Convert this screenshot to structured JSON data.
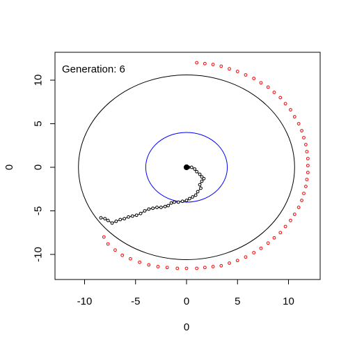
{
  "chart_data": {
    "type": "scatter",
    "title": "",
    "annotation": "Generation: 6",
    "xlabel": "0",
    "ylabel": "0",
    "xlim": [
      -13,
      13
    ],
    "ylim": [
      -13,
      13
    ],
    "x_ticks": [
      -10,
      -5,
      0,
      5,
      10
    ],
    "y_ticks": [
      -10,
      -5,
      0,
      5,
      10
    ],
    "x_tick_labels": [
      "-10",
      "-5",
      "0",
      "5",
      "10"
    ],
    "y_tick_labels": [
      "-10",
      "-5",
      "0",
      "5",
      "10"
    ],
    "grid": false,
    "legend": "none",
    "circles": [
      {
        "center": [
          0,
          0
        ],
        "radius": 10.6,
        "color": "#000000"
      },
      {
        "center": [
          0,
          0
        ],
        "radius": 4.0,
        "color": "#0000ff"
      }
    ],
    "origin_point": {
      "x": 0,
      "y": 0,
      "color": "#000000"
    },
    "series": [
      {
        "role": "outer-arc",
        "color": "#ff0000",
        "marker": "open-circle",
        "points": [
          [
            1.0,
            12.0
          ],
          [
            1.8,
            11.9
          ],
          [
            2.6,
            11.8
          ],
          [
            3.4,
            11.6
          ],
          [
            4.2,
            11.3
          ],
          [
            5.0,
            11.0
          ],
          [
            5.8,
            10.6
          ],
          [
            6.6,
            10.2
          ],
          [
            7.3,
            9.7
          ],
          [
            8.0,
            9.2
          ],
          [
            8.6,
            8.6
          ],
          [
            9.2,
            8.0
          ],
          [
            9.7,
            7.3
          ],
          [
            10.2,
            6.6
          ],
          [
            10.6,
            5.8
          ],
          [
            11.0,
            5.0
          ],
          [
            11.3,
            4.2
          ],
          [
            11.5,
            3.4
          ],
          [
            11.7,
            2.6
          ],
          [
            11.8,
            1.8
          ],
          [
            11.9,
            1.0
          ],
          [
            11.9,
            0.2
          ],
          [
            11.9,
            -0.6
          ],
          [
            11.8,
            -1.4
          ],
          [
            11.7,
            -2.2
          ],
          [
            11.5,
            -3.0
          ],
          [
            11.3,
            -3.8
          ],
          [
            11.0,
            -4.6
          ],
          [
            10.6,
            -5.4
          ],
          [
            10.2,
            -6.1
          ],
          [
            9.7,
            -6.8
          ],
          [
            9.2,
            -7.5
          ],
          [
            8.6,
            -8.1
          ],
          [
            8.0,
            -8.7
          ],
          [
            7.3,
            -9.3
          ],
          [
            6.6,
            -9.8
          ],
          [
            5.8,
            -10.3
          ],
          [
            5.0,
            -10.7
          ],
          [
            4.2,
            -11.0
          ],
          [
            3.4,
            -11.3
          ],
          [
            2.6,
            -11.4
          ],
          [
            1.8,
            -11.5
          ],
          [
            1.0,
            -11.6
          ],
          [
            0.0,
            -11.6
          ],
          [
            -0.9,
            -11.6
          ],
          [
            -1.9,
            -11.5
          ],
          [
            -2.8,
            -11.4
          ],
          [
            -3.7,
            -11.2
          ],
          [
            -4.6,
            -10.9
          ],
          [
            -5.5,
            -10.5
          ],
          [
            -6.3,
            -10.1
          ],
          [
            -7.0,
            -9.5
          ],
          [
            -7.7,
            -8.8
          ],
          [
            -8.1,
            -8.0
          ]
        ]
      },
      {
        "role": "walk-path",
        "color": "#000000",
        "marker": "open-circle-line",
        "points": [
          [
            0.2,
            0.0
          ],
          [
            0.5,
            0.0
          ],
          [
            0.8,
            -0.2
          ],
          [
            1.0,
            -0.5
          ],
          [
            1.3,
            -0.8
          ],
          [
            1.5,
            -1.1
          ],
          [
            1.7,
            -1.3
          ],
          [
            1.5,
            -1.6
          ],
          [
            1.3,
            -2.0
          ],
          [
            1.4,
            -2.4
          ],
          [
            1.1,
            -2.8
          ],
          [
            0.9,
            -3.2
          ],
          [
            0.6,
            -3.4
          ],
          [
            0.3,
            -3.6
          ],
          [
            0.0,
            -3.8
          ],
          [
            -0.4,
            -3.9
          ],
          [
            -0.8,
            -4.0
          ],
          [
            -1.2,
            -4.0
          ],
          [
            -1.5,
            -4.1
          ],
          [
            -1.8,
            -4.4
          ],
          [
            -2.1,
            -4.5
          ],
          [
            -2.5,
            -4.6
          ],
          [
            -2.9,
            -4.6
          ],
          [
            -3.3,
            -4.7
          ],
          [
            -3.7,
            -4.8
          ],
          [
            -4.1,
            -5.0
          ],
          [
            -4.5,
            -5.3
          ],
          [
            -4.9,
            -5.5
          ],
          [
            -5.3,
            -5.6
          ],
          [
            -5.7,
            -5.7
          ],
          [
            -6.1,
            -5.9
          ],
          [
            -6.5,
            -6.0
          ],
          [
            -6.9,
            -6.2
          ],
          [
            -7.3,
            -6.4
          ],
          [
            -7.7,
            -6.1
          ],
          [
            -8.0,
            -5.9
          ],
          [
            -8.4,
            -5.8
          ]
        ]
      }
    ]
  }
}
